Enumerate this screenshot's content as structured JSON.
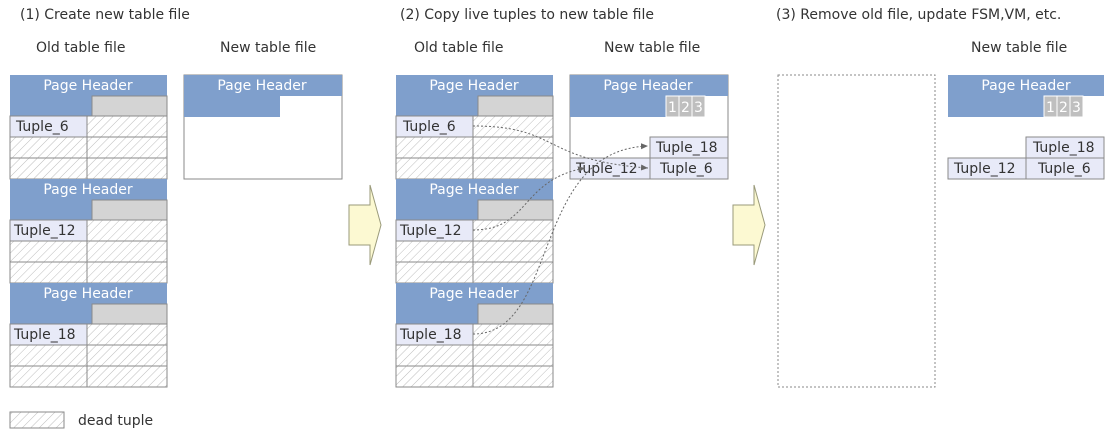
{
  "steps": {
    "step1": "(1) Create new table file",
    "step2": "(2) Copy live tuples to new table file",
    "step3": "(3) Remove old file, update FSM,VM, etc."
  },
  "labels": {
    "old_table_file": "Old table file",
    "new_table_file": "New table file"
  },
  "page_header": "Page Header",
  "tuples": {
    "t6": "Tuple_6",
    "t12": "Tuple_12",
    "t18": "Tuple_18"
  },
  "line_pointers": [
    "1",
    "2",
    "3"
  ],
  "legend": {
    "dead_tuple": "dead tuple"
  },
  "colors": {
    "header": "#7f9fcc",
    "tuple_bg": "#e8eaf8",
    "grid": "#8a8a8a",
    "hatch": "#b8b8b8",
    "line_pointer_bg": "#d4d4d4",
    "arrow_fill": "#fcf9d2",
    "arrow_stroke": "#9a9a7a"
  }
}
